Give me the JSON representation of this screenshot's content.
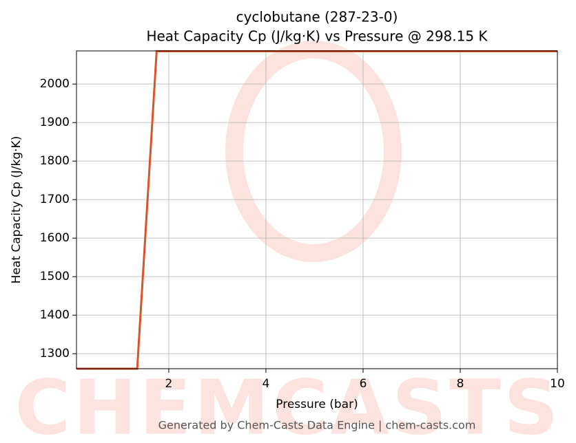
{
  "chart_data": {
    "type": "line",
    "title": "cyclobutane (287-23-0)",
    "subtitle": "Heat Capacity Cp (J/kg·K) vs Pressure @ 298.15 K",
    "x_label": "Pressure (bar)",
    "y_label": "Heat Capacity Cp (J/kg·K)",
    "watermark": "CHEMCASTS",
    "footer": "Generated by Chem-Casts Data Engine | chem-casts.com",
    "x": [
      0.1,
      1.35,
      1.75,
      10
    ],
    "series": [
      {
        "color": "#d9532b",
        "values": [
          1261,
          1261,
          2085,
          2085
        ]
      }
    ],
    "xlim": [
      0.1,
      10
    ],
    "xticks": [
      2,
      4,
      6,
      8,
      10
    ],
    "ylim": [
      1261,
      2086
    ],
    "yticks": [
      1300,
      1400,
      1500,
      1600,
      1700,
      1800,
      1900,
      2000
    ],
    "grid": true
  }
}
